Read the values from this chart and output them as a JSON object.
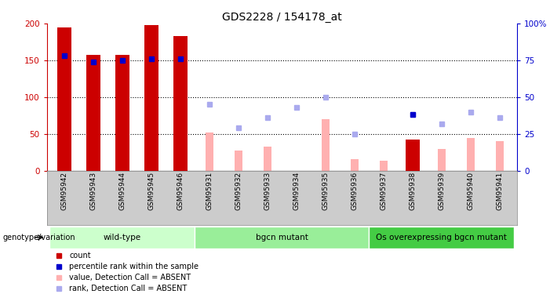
{
  "title": "GDS2228 / 154178_at",
  "samples": [
    "GSM95942",
    "GSM95943",
    "GSM95944",
    "GSM95945",
    "GSM95946",
    "GSM95931",
    "GSM95932",
    "GSM95933",
    "GSM95934",
    "GSM95935",
    "GSM95936",
    "GSM95937",
    "GSM95938",
    "GSM95939",
    "GSM95940",
    "GSM95941"
  ],
  "count_values": [
    195,
    157,
    157,
    198,
    183,
    null,
    null,
    null,
    null,
    null,
    null,
    null,
    42,
    null,
    null,
    null
  ],
  "rank_values": [
    78,
    74,
    75,
    76,
    76,
    null,
    null,
    null,
    null,
    null,
    null,
    null,
    null,
    null,
    null,
    null
  ],
  "value_absent": [
    null,
    null,
    null,
    null,
    null,
    52,
    27,
    33,
    null,
    70,
    15,
    13,
    null,
    29,
    44,
    40
  ],
  "rank_absent": [
    null,
    null,
    null,
    null,
    null,
    45,
    29,
    36,
    43,
    50,
    25,
    null,
    38,
    32,
    40,
    36
  ],
  "rank_absent_dark": [
    null,
    null,
    null,
    null,
    null,
    null,
    null,
    null,
    null,
    null,
    null,
    null,
    38,
    null,
    null,
    null
  ],
  "groups": [
    {
      "label": "wild-type",
      "start": 0,
      "end": 5,
      "color": "#ccffcc"
    },
    {
      "label": "bgcn mutant",
      "start": 5,
      "end": 11,
      "color": "#99ee99"
    },
    {
      "label": "Os overexpressing bgcn mutant",
      "start": 11,
      "end": 16,
      "color": "#44cc44"
    }
  ],
  "ylim_left": [
    0,
    200
  ],
  "ylim_right": [
    0,
    100
  ],
  "yticks_left": [
    0,
    50,
    100,
    150,
    200
  ],
  "yticks_right": [
    0,
    25,
    50,
    75,
    100
  ],
  "ytick_labels_left": [
    "0",
    "50",
    "100",
    "150",
    "200"
  ],
  "ytick_labels_right": [
    "0",
    "25",
    "50",
    "75",
    "100%"
  ],
  "bar_color_dark": "#cc0000",
  "bar_color_light": "#ffb0b0",
  "dot_color_dark": "#0000cc",
  "dot_color_light": "#aaaaee",
  "background_plot": "#ffffff",
  "background_xaxis": "#cccccc",
  "legend_items": [
    {
      "color": "#cc0000",
      "label": "count"
    },
    {
      "color": "#0000cc",
      "label": "percentile rank within the sample"
    },
    {
      "color": "#ffb0b0",
      "label": "value, Detection Call = ABSENT"
    },
    {
      "color": "#aaaaee",
      "label": "rank, Detection Call = ABSENT"
    }
  ]
}
